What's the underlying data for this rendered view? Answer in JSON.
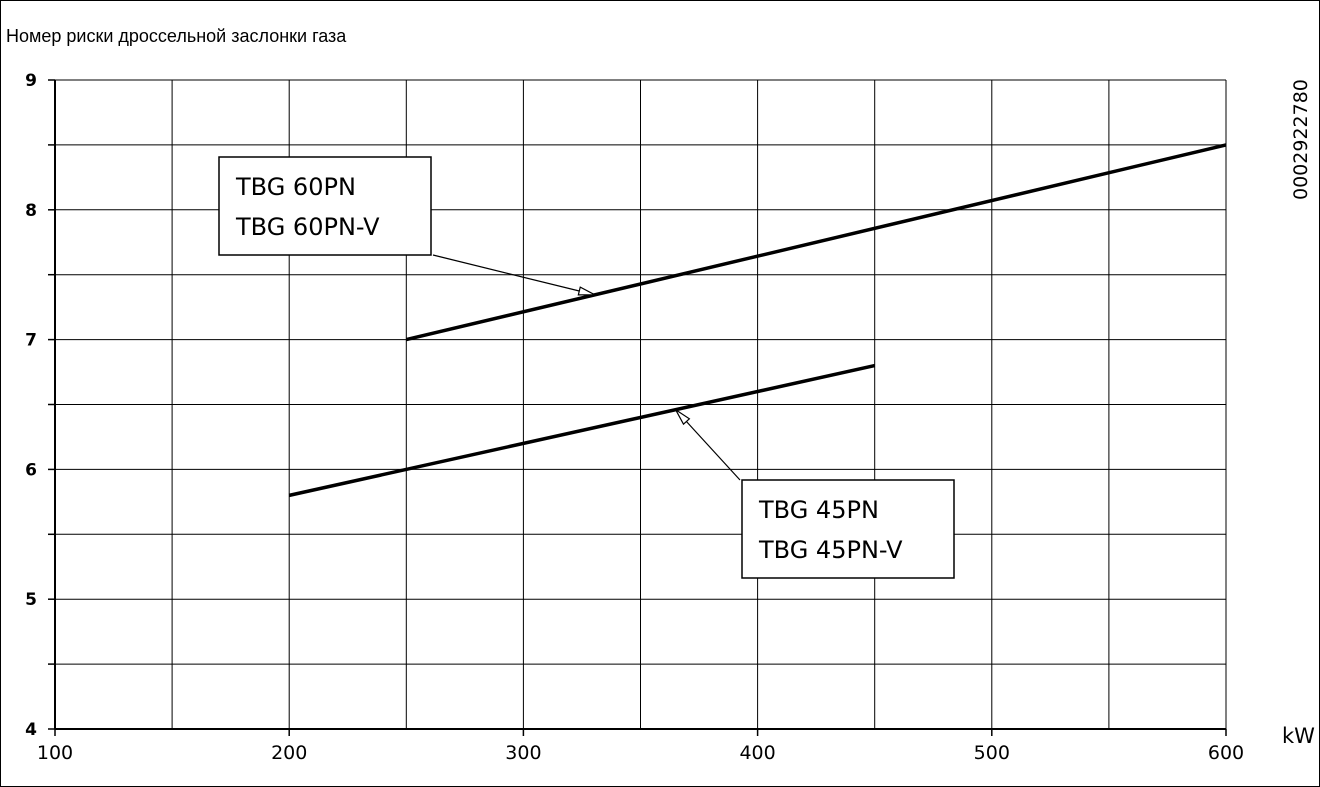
{
  "chart_data": {
    "type": "line",
    "ylabel": "Номер риски дроссельной заслонки газа",
    "xlabel": "kW",
    "xlim": [
      100,
      600
    ],
    "ylim": [
      4,
      9
    ],
    "x_ticks": [
      100,
      200,
      300,
      400,
      500,
      600
    ],
    "y_ticks": [
      4,
      5,
      6,
      7,
      8,
      9
    ],
    "x_grid_step": 50,
    "y_grid_step": 0.5,
    "grid": true,
    "series": [
      {
        "name": "TBG 60PN / TBG 60PN-V",
        "label_lines": [
          "TBG 60PN",
          "TBG 60PN-V"
        ],
        "points": [
          [
            250,
            7.0
          ],
          [
            600,
            8.5
          ]
        ]
      },
      {
        "name": "TBG 45PN / TBG 45PN-V",
        "label_lines": [
          "TBG 45PN",
          "TBG 45PN-V"
        ],
        "points": [
          [
            200,
            5.8
          ],
          [
            450,
            6.8
          ]
        ]
      }
    ],
    "side_code": "0002922780"
  }
}
